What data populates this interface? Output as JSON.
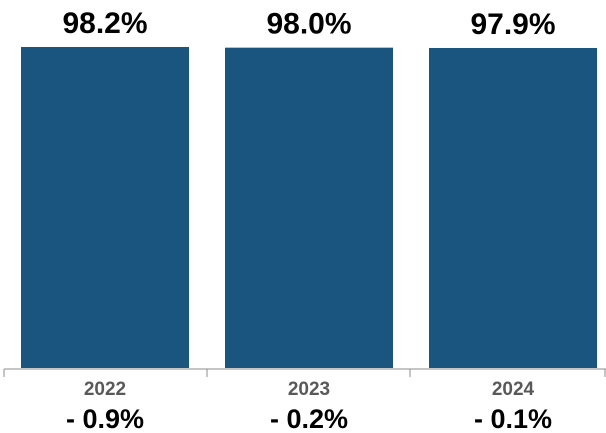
{
  "chart_data": {
    "type": "bar",
    "categories": [
      "2022",
      "2023",
      "2024"
    ],
    "values": [
      98.2,
      98.0,
      97.9
    ],
    "value_labels": [
      "98.2%",
      "98.0%",
      "97.9%"
    ],
    "change_labels": [
      "- 0.9%",
      "- 0.2%",
      "- 0.1%"
    ],
    "ylim": [
      0,
      100
    ],
    "grid": false,
    "bar_color": "#1a5580"
  }
}
